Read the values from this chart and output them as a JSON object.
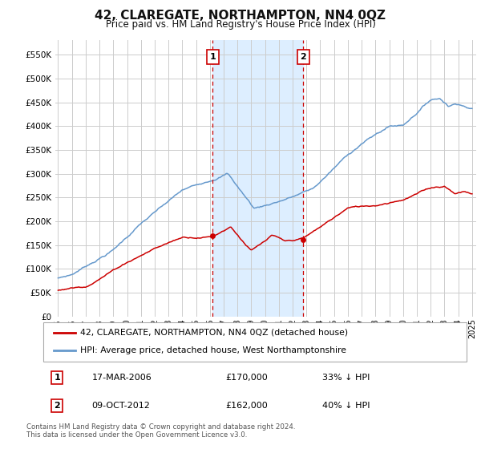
{
  "title": "42, CLAREGATE, NORTHAMPTON, NN4 0QZ",
  "subtitle": "Price paid vs. HM Land Registry's House Price Index (HPI)",
  "ylabel_ticks": [
    "£0",
    "£50K",
    "£100K",
    "£150K",
    "£200K",
    "£250K",
    "£300K",
    "£350K",
    "£400K",
    "£450K",
    "£500K",
    "£550K"
  ],
  "ytick_values": [
    0,
    50000,
    100000,
    150000,
    200000,
    250000,
    300000,
    350000,
    400000,
    450000,
    500000,
    550000
  ],
  "ylim": [
    0,
    580000
  ],
  "xlim_start": 1994.8,
  "xlim_end": 2025.3,
  "vline1_x": 2006.21,
  "vline2_x": 2012.78,
  "vline_color": "#cc0000",
  "vline1_label": "1",
  "vline2_label": "2",
  "red_line_color": "#cc0000",
  "blue_line_color": "#6699cc",
  "legend_label_red": "42, CLAREGATE, NORTHAMPTON, NN4 0QZ (detached house)",
  "legend_label_blue": "HPI: Average price, detached house, West Northamptonshire",
  "annotation1_num": "1",
  "annotation1_date": "17-MAR-2006",
  "annotation1_price": "£170,000",
  "annotation1_pct": "33% ↓ HPI",
  "annotation2_num": "2",
  "annotation2_date": "09-OCT-2012",
  "annotation2_price": "£162,000",
  "annotation2_pct": "40% ↓ HPI",
  "footer": "Contains HM Land Registry data © Crown copyright and database right 2024.\nThis data is licensed under the Open Government Licence v3.0.",
  "bg_color": "#ffffff",
  "grid_color": "#cccccc",
  "highlight_bg": "#ddeeff",
  "sale1_y": 170000,
  "sale2_y": 162000
}
